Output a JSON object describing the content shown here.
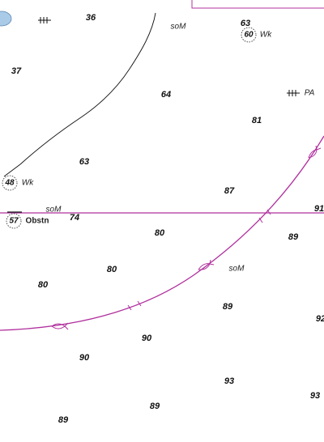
{
  "soundings": [
    36,
    63,
    37,
    64,
    81,
    63,
    87,
    91,
    74,
    80,
    89,
    80,
    80,
    89,
    92,
    90,
    90,
    93,
    93,
    89,
    89
  ],
  "wrecks": [
    {
      "depth": 60,
      "label": "Wk"
    },
    {
      "depth": 48,
      "label": "Wk"
    }
  ],
  "obstruction": {
    "depth": 57,
    "label": "Obstn"
  },
  "seabed": [
    "soM",
    "soM",
    "soM"
  ],
  "position_note": "PA"
}
